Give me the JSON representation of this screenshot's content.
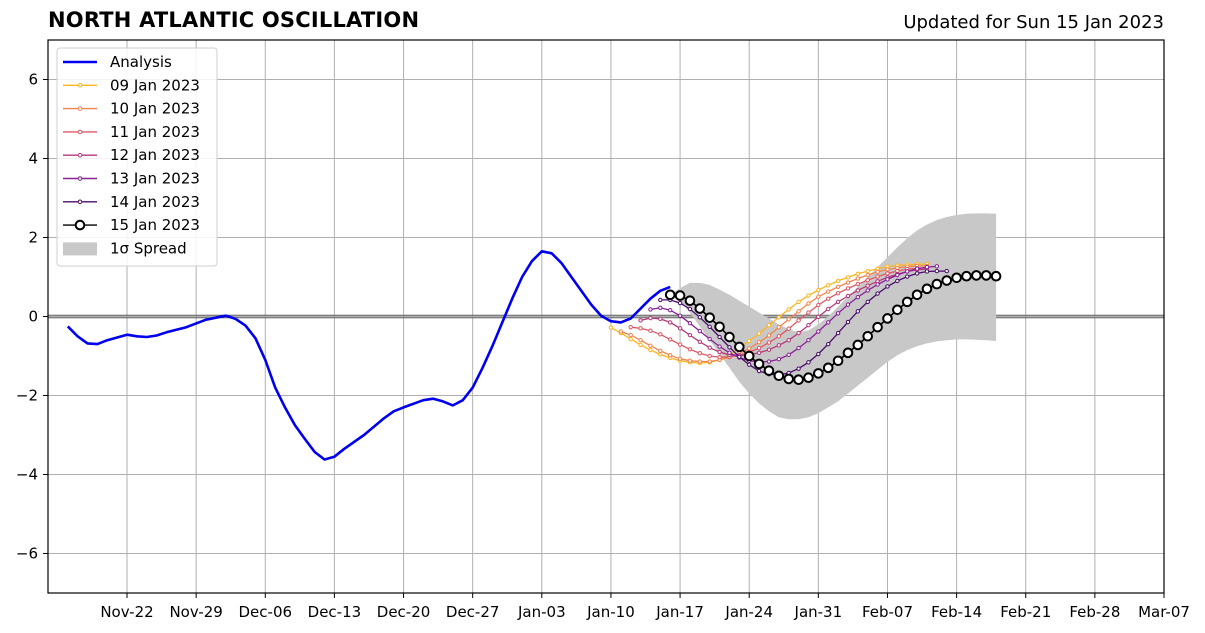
{
  "header": {
    "title": "NORTH ATLANTIC OSCILLATION",
    "updated": "Updated for Sun 15 Jan 2023"
  },
  "chart_data": {
    "type": "line",
    "title": "NORTH ATLANTIC OSCILLATION",
    "xlabel": "",
    "ylabel": "",
    "x_axis": {
      "type": "date",
      "range": [
        "2022-11-14",
        "2023-03-07"
      ],
      "ticks": [
        "2022-11-22",
        "2022-11-29",
        "2022-12-06",
        "2022-12-13",
        "2022-12-20",
        "2022-12-27",
        "2023-01-03",
        "2023-01-10",
        "2023-01-17",
        "2023-01-24",
        "2023-01-31",
        "2023-02-07",
        "2023-02-14",
        "2023-02-21",
        "2023-02-28",
        "2023-03-07"
      ],
      "tick_labels": [
        "Nov-22",
        "Nov-29",
        "Dec-06",
        "Dec-13",
        "Dec-20",
        "Dec-27",
        "Jan-03",
        "Jan-10",
        "Jan-17",
        "Jan-24",
        "Jan-31",
        "Feb-07",
        "Feb-14",
        "Feb-21",
        "Feb-28",
        "Mar-07"
      ]
    },
    "y_axis": {
      "range": [
        -7,
        7
      ],
      "ticks": [
        -6,
        -4,
        -2,
        0,
        2,
        4,
        6
      ],
      "tick_labels": [
        "−6",
        "−4",
        "−2",
        "0",
        "2",
        "4",
        "6"
      ]
    },
    "grid": true,
    "legend_position": "top-left",
    "analysis": {
      "name": "Analysis",
      "color": "#0000ee",
      "points": [
        [
          "2022-11-16",
          -0.25
        ],
        [
          "2022-11-17",
          -0.5
        ],
        [
          "2022-11-18",
          -0.68
        ],
        [
          "2022-11-19",
          -0.7
        ],
        [
          "2022-11-20",
          -0.6
        ],
        [
          "2022-11-22",
          -0.46
        ],
        [
          "2022-11-23",
          -0.5
        ],
        [
          "2022-11-24",
          -0.52
        ],
        [
          "2022-11-25",
          -0.48
        ],
        [
          "2022-11-26",
          -0.4
        ],
        [
          "2022-11-28",
          -0.27
        ],
        [
          "2022-11-30",
          -0.08
        ],
        [
          "2022-12-02",
          0.02
        ],
        [
          "2022-12-03",
          -0.06
        ],
        [
          "2022-12-04",
          -0.23
        ],
        [
          "2022-12-05",
          -0.55
        ],
        [
          "2022-12-06",
          -1.1
        ],
        [
          "2022-12-07",
          -1.8
        ],
        [
          "2022-12-08",
          -2.3
        ],
        [
          "2022-12-09",
          -2.75
        ],
        [
          "2022-12-10",
          -3.1
        ],
        [
          "2022-12-11",
          -3.43
        ],
        [
          "2022-12-12",
          -3.62
        ],
        [
          "2022-12-13",
          -3.55
        ],
        [
          "2022-12-14",
          -3.35
        ],
        [
          "2022-12-16",
          -3.0
        ],
        [
          "2022-12-18",
          -2.58
        ],
        [
          "2022-12-19",
          -2.4
        ],
        [
          "2022-12-20",
          -2.3
        ],
        [
          "2022-12-22",
          -2.12
        ],
        [
          "2022-12-23",
          -2.08
        ],
        [
          "2022-12-24",
          -2.15
        ],
        [
          "2022-12-25",
          -2.25
        ],
        [
          "2022-12-26",
          -2.12
        ],
        [
          "2022-12-27",
          -1.8
        ],
        [
          "2022-12-28",
          -1.3
        ],
        [
          "2022-12-29",
          -0.75
        ],
        [
          "2022-12-30",
          -0.15
        ],
        [
          "2022-12-31",
          0.45
        ],
        [
          "2023-01-01",
          1.0
        ],
        [
          "2023-01-02",
          1.4
        ],
        [
          "2023-01-03",
          1.65
        ],
        [
          "2023-01-04",
          1.6
        ],
        [
          "2023-01-05",
          1.35
        ],
        [
          "2023-01-06",
          1.0
        ],
        [
          "2023-01-07",
          0.65
        ],
        [
          "2023-01-08",
          0.3
        ],
        [
          "2023-01-09",
          0.02
        ],
        [
          "2023-01-10",
          -0.12
        ],
        [
          "2023-01-11",
          -0.15
        ],
        [
          "2023-01-12",
          -0.05
        ],
        [
          "2023-01-13",
          0.2
        ],
        [
          "2023-01-14",
          0.45
        ],
        [
          "2023-01-15",
          0.65
        ],
        [
          "2023-01-16",
          0.75
        ]
      ]
    },
    "forecasts": [
      {
        "name": "09 Jan 2023",
        "color": "#fcb520",
        "start": "2023-01-10",
        "values": [
          -0.28,
          -0.42,
          -0.57,
          -0.72,
          -0.85,
          -0.96,
          -1.05,
          -1.12,
          -1.16,
          -1.18,
          -1.16,
          -1.1,
          -0.97,
          -0.8,
          -0.62,
          -0.43,
          -0.22,
          -0.02,
          0.18,
          0.37,
          0.53,
          0.67,
          0.79,
          0.9,
          0.99,
          1.08,
          1.15,
          1.21,
          1.26,
          1.29,
          1.31,
          1.32,
          1.33
        ]
      },
      {
        "name": "10 Jan 2023",
        "color": "#f1844b",
        "start": "2023-01-11",
        "values": [
          -0.38,
          -0.47,
          -0.6,
          -0.74,
          -0.87,
          -0.98,
          -1.07,
          -1.12,
          -1.14,
          -1.14,
          -1.1,
          -1.03,
          -0.93,
          -0.81,
          -0.65,
          -0.48,
          -0.27,
          -0.07,
          0.13,
          0.33,
          0.5,
          0.63,
          0.75,
          0.86,
          0.96,
          1.05,
          1.13,
          1.19,
          1.23,
          1.26,
          1.28,
          1.28
        ]
      },
      {
        "name": "11 Jan 2023",
        "color": "#dd5a66",
        "start": "2023-01-12",
        "values": [
          -0.27,
          -0.3,
          -0.36,
          -0.45,
          -0.58,
          -0.71,
          -0.83,
          -0.93,
          -1.0,
          -1.03,
          -1.02,
          -0.98,
          -0.9,
          -0.8,
          -0.66,
          -0.5,
          -0.31,
          -0.1,
          0.1,
          0.29,
          0.45,
          0.59,
          0.71,
          0.82,
          0.92,
          1.01,
          1.09,
          1.15,
          1.2,
          1.22,
          1.23
        ]
      },
      {
        "name": "12 Jan 2023",
        "color": "#b73779",
        "start": "2023-01-13",
        "values": [
          -0.1,
          -0.04,
          -0.06,
          -0.15,
          -0.3,
          -0.47,
          -0.64,
          -0.79,
          -0.9,
          -0.97,
          -0.99,
          -0.97,
          -0.92,
          -0.84,
          -0.73,
          -0.6,
          -0.42,
          -0.22,
          -0.01,
          0.19,
          0.37,
          0.52,
          0.66,
          0.78,
          0.89,
          0.99,
          1.07,
          1.14,
          1.18,
          1.2
        ]
      },
      {
        "name": "13 Jan 2023",
        "color": "#8a2197",
        "start": "2023-01-14",
        "values": [
          0.18,
          0.22,
          0.16,
          0.02,
          -0.17,
          -0.37,
          -0.57,
          -0.76,
          -0.92,
          -1.04,
          -1.12,
          -1.15,
          -1.14,
          -1.08,
          -0.97,
          -0.8,
          -0.6,
          -0.38,
          -0.15,
          0.08,
          0.3,
          0.49,
          0.66,
          0.81,
          0.94,
          1.05,
          1.14,
          1.21,
          1.25,
          1.27
        ]
      },
      {
        "name": "14 Jan 2023",
        "color": "#4a0c6b",
        "start": "2023-01-15",
        "values": [
          0.42,
          0.42,
          0.34,
          0.19,
          -0.02,
          -0.26,
          -0.52,
          -0.78,
          -1.02,
          -1.22,
          -1.38,
          -1.46,
          -1.48,
          -1.43,
          -1.32,
          -1.16,
          -0.95,
          -0.7,
          -0.42,
          -0.14,
          0.13,
          0.37,
          0.58,
          0.76,
          0.9,
          1.01,
          1.09,
          1.14,
          1.15,
          1.15
        ]
      },
      {
        "name": "15 Jan 2023",
        "color": "#000000",
        "start": "2023-01-16",
        "values": [
          0.55,
          0.53,
          0.4,
          0.2,
          -0.03,
          -0.26,
          -0.52,
          -0.77,
          -1.0,
          -1.2,
          -1.37,
          -1.5,
          -1.58,
          -1.6,
          -1.55,
          -1.44,
          -1.3,
          -1.12,
          -0.92,
          -0.72,
          -0.5,
          -0.27,
          -0.05,
          0.17,
          0.37,
          0.55,
          0.7,
          0.82,
          0.91,
          0.98,
          1.02,
          1.04,
          1.04,
          1.02
        ]
      }
    ],
    "spread": {
      "name": "1σ Spread",
      "color": "#c8c8c8",
      "start": "2023-01-16",
      "upper": [
        0.55,
        0.72,
        0.85,
        0.85,
        0.8,
        0.68,
        0.55,
        0.4,
        0.25,
        0.1,
        -0.05,
        -0.2,
        -0.32,
        -0.4,
        -0.35,
        -0.2,
        0.0,
        0.25,
        0.5,
        0.75,
        1.0,
        1.25,
        1.5,
        1.75,
        1.98,
        2.18,
        2.33,
        2.44,
        2.52,
        2.57,
        2.6,
        2.61,
        2.61,
        2.6
      ],
      "lower": [
        0.55,
        0.4,
        0.1,
        -0.25,
        -0.6,
        -0.95,
        -1.3,
        -1.65,
        -1.95,
        -2.2,
        -2.4,
        -2.55,
        -2.6,
        -2.6,
        -2.55,
        -2.45,
        -2.3,
        -2.15,
        -1.95,
        -1.75,
        -1.55,
        -1.35,
        -1.15,
        -0.98,
        -0.85,
        -0.75,
        -0.68,
        -0.63,
        -0.6,
        -0.58,
        -0.58,
        -0.59,
        -0.6,
        -0.62
      ]
    }
  }
}
